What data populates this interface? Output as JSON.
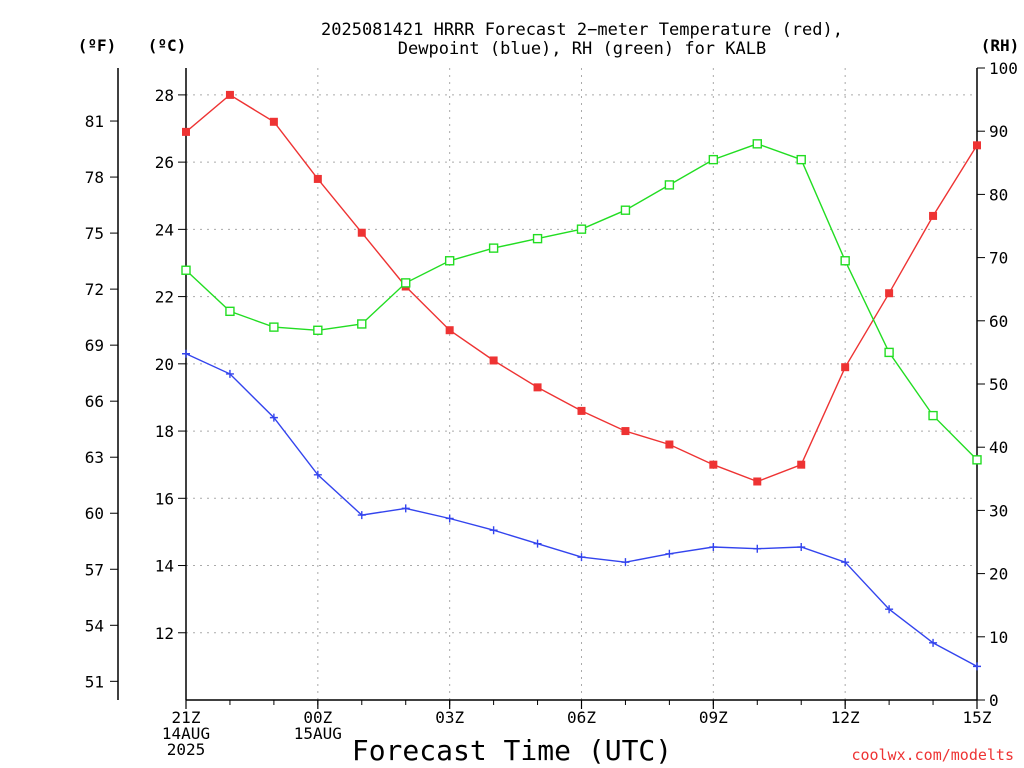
{
  "chart_data": {
    "type": "line",
    "title_line1": "2025081421 HRRR Forecast 2−meter Temperature (red),",
    "title_line2": "Dewpoint (blue), RH (green) for KALB",
    "xlabel": "Forecast Time (UTC)",
    "left_outer_unit": "(ºF)",
    "left_inner_unit": "(ºC)",
    "right_unit": "(RH)",
    "credit": "coolwx.com/modelts",
    "hours": [
      0,
      1,
      2,
      3,
      4,
      5,
      6,
      7,
      8,
      9,
      10,
      11,
      12,
      13,
      14,
      15,
      16,
      17,
      18
    ],
    "xlim": [
      0,
      18
    ],
    "ylim_c": [
      10,
      28.8
    ],
    "ylim_f": [
      50,
      83.84
    ],
    "ylim_rh": [
      0,
      100
    ],
    "x_ticks": [
      {
        "hour": 0,
        "lines": [
          "21Z",
          "14AUG",
          "2025"
        ]
      },
      {
        "hour": 3,
        "lines": [
          "00Z",
          "15AUG"
        ]
      },
      {
        "hour": 6,
        "lines": [
          "03Z"
        ]
      },
      {
        "hour": 9,
        "lines": [
          "06Z"
        ]
      },
      {
        "hour": 12,
        "lines": [
          "09Z"
        ]
      },
      {
        "hour": 15,
        "lines": [
          "12Z"
        ]
      },
      {
        "hour": 18,
        "lines": [
          "15Z"
        ]
      }
    ],
    "c_ticks": [
      12,
      14,
      16,
      18,
      20,
      22,
      24,
      26,
      28
    ],
    "f_ticks": [
      51,
      54,
      57,
      60,
      63,
      66,
      69,
      72,
      75,
      78,
      81
    ],
    "rh_ticks": [
      0,
      10,
      20,
      30,
      40,
      50,
      60,
      70,
      80,
      90,
      100
    ],
    "grid": true,
    "series": [
      {
        "key": "temperature",
        "unit": "C",
        "color": "#ee3333",
        "marker": "filled-square",
        "values": [
          26.9,
          28.0,
          27.2,
          25.5,
          23.9,
          22.3,
          21.0,
          20.1,
          19.3,
          18.6,
          18.0,
          17.6,
          17.0,
          16.5,
          17.0,
          19.9,
          22.1,
          24.4,
          26.5
        ]
      },
      {
        "key": "dewpoint",
        "unit": "C",
        "color": "#3344ee",
        "marker": "plus",
        "values": [
          20.3,
          19.7,
          18.4,
          16.7,
          15.5,
          15.7,
          15.4,
          15.05,
          14.65,
          14.25,
          14.1,
          14.35,
          14.55,
          14.5,
          14.55,
          14.1,
          12.7,
          11.7,
          11.0
        ]
      },
      {
        "key": "rh",
        "unit": "%",
        "color": "#22dd22",
        "marker": "open-square",
        "values": [
          68.0,
          61.5,
          59.0,
          58.5,
          59.5,
          66.0,
          69.5,
          71.5,
          73.0,
          74.5,
          77.5,
          81.5,
          85.5,
          88.0,
          85.5,
          69.5,
          55.0,
          45.0,
          38.0
        ]
      }
    ]
  }
}
